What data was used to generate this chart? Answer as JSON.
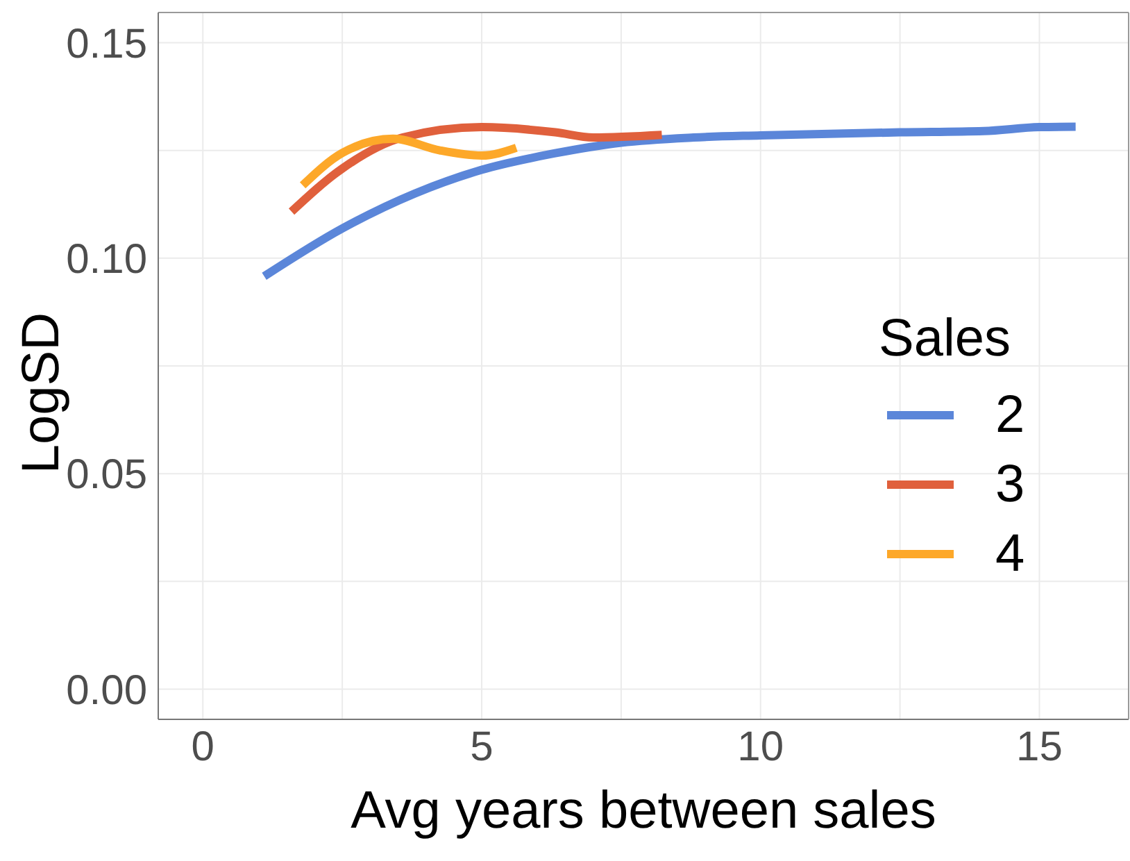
{
  "chart_data": {
    "type": "line",
    "xlabel": "Avg years between sales",
    "ylabel": "LogSD",
    "legend_title": "Sales",
    "legend": "right",
    "grid": true,
    "marker": "none",
    "line_style": "solid",
    "xlim": [
      -0.8,
      16.6
    ],
    "xticks": [
      0,
      {
        "value": 2.5,
        "label": null
      },
      5,
      {
        "value": 7.5,
        "label": null
      },
      10,
      {
        "value": 12.5,
        "label": null
      },
      15
    ],
    "ylim": [
      -0.007,
      0.157
    ],
    "yticks": [
      {
        "value": 0,
        "label": "0.00"
      },
      {
        "value": 0.025,
        "label": null
      },
      {
        "value": 0.05,
        "label": "0.05"
      },
      {
        "value": 0.075,
        "label": null
      },
      {
        "value": 0.1,
        "label": "0.10"
      },
      {
        "value": 0.125,
        "label": null
      },
      {
        "value": 0.15,
        "label": "0.15"
      }
    ],
    "series": [
      {
        "name": "2",
        "color": "#5b86d9",
        "x": [
          1.1,
          2.5,
          3.8,
          5,
          6.3,
          7.5,
          8.8,
          10,
          12.5,
          14,
          15,
          15.65
        ],
        "values": [
          0.0958,
          0.1069,
          0.115,
          0.1205,
          0.1243,
          0.1268,
          0.128,
          0.1285,
          0.1292,
          0.1295,
          0.1304,
          0.1305
        ]
      },
      {
        "name": "3",
        "color": "#e0603c",
        "x": [
          1.59,
          2.5,
          3.58,
          5,
          6.32,
          7.0,
          8.23
        ],
        "values": [
          0.1108,
          0.1208,
          0.128,
          0.1304,
          0.1292,
          0.128,
          0.1286
        ]
      },
      {
        "name": "4",
        "color": "#fda829",
        "x": [
          1.79,
          2.5,
          3.41,
          4.25,
          5,
          5.62
        ],
        "values": [
          0.1169,
          0.1244,
          0.1277,
          0.125,
          0.1238,
          0.1256
        ]
      }
    ]
  }
}
